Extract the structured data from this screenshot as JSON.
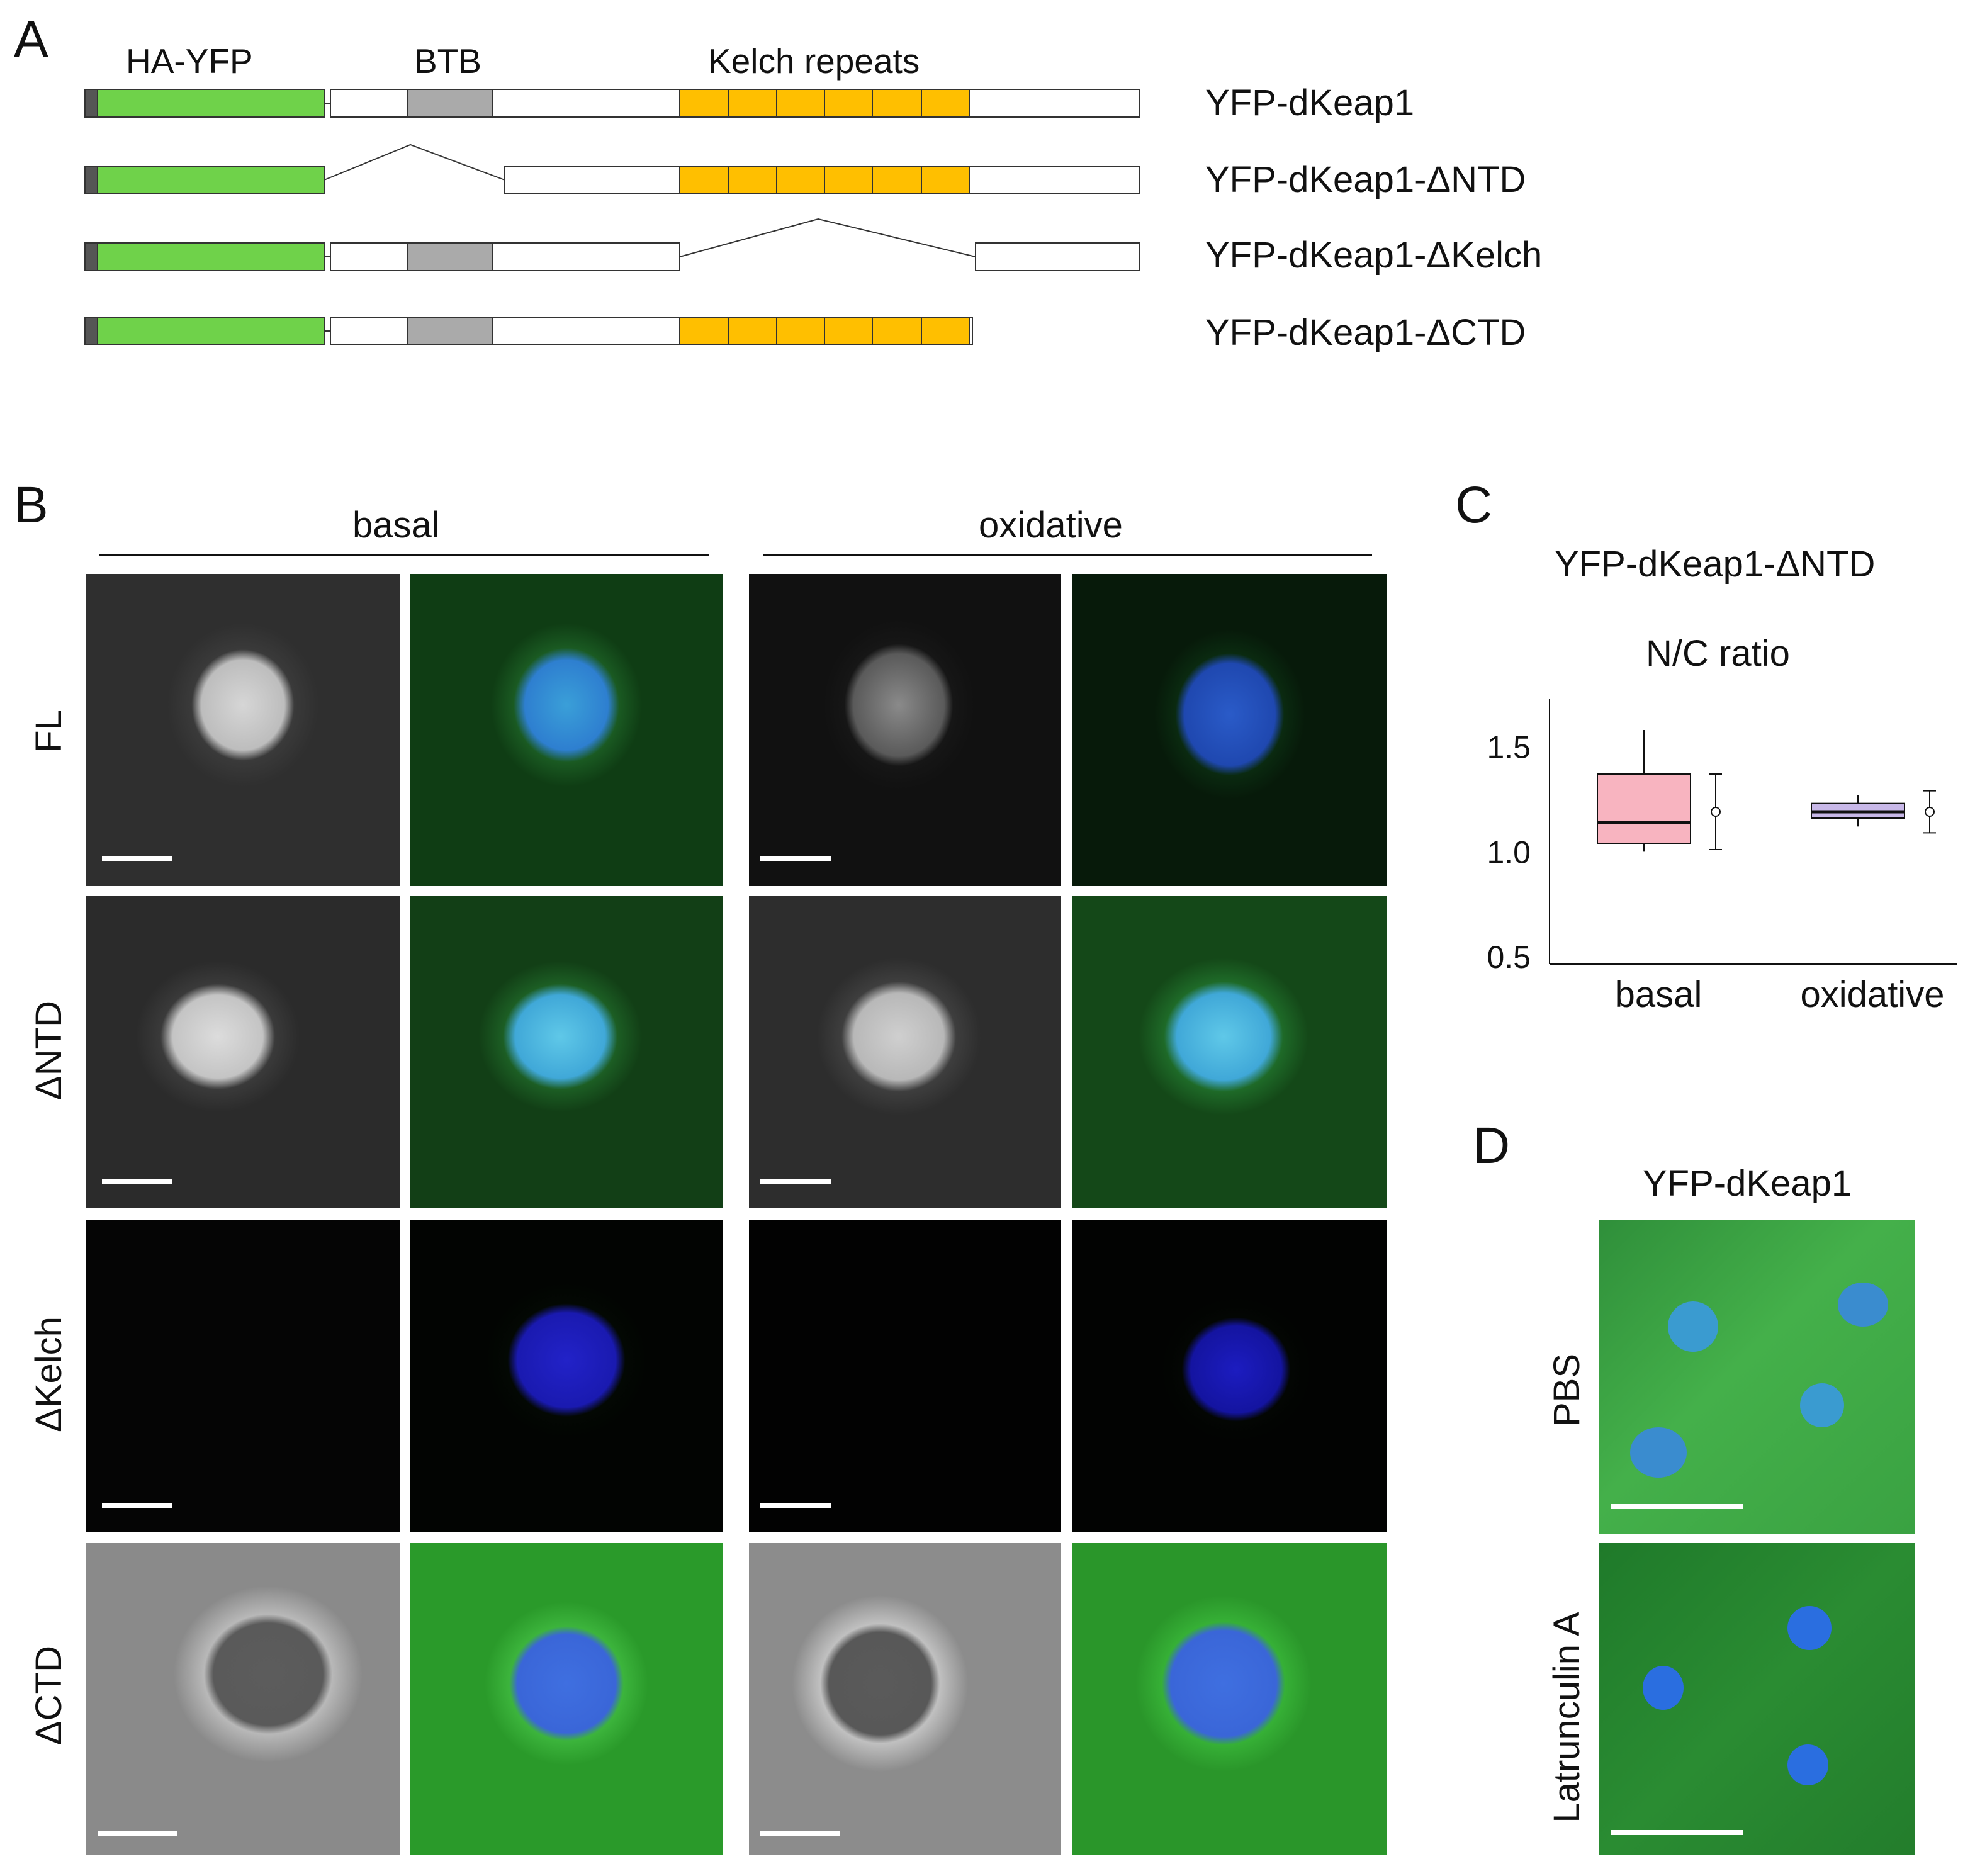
{
  "panels": {
    "a": "A",
    "b": "B",
    "c": "C",
    "d": "D"
  },
  "panel_a": {
    "domain_labels": {
      "hayfp": "HA-YFP",
      "btb": "BTB",
      "kelch": "Kelch repeats"
    },
    "constructs": [
      "YFP-dKeap1",
      "YFP-dKeap1-ΔNTD",
      "YFP-dKeap1-ΔKelch",
      "YFP-dKeap1-ΔCTD"
    ],
    "colors": {
      "yfp": "#6fd24a",
      "tag": "#555555",
      "btb": "#aaaaaa",
      "kelch": "#ffbf00",
      "body": "#ffffff"
    }
  },
  "panel_b": {
    "conditions": [
      "basal",
      "oxidative"
    ],
    "rows": [
      "FL",
      "ΔNTD",
      "ΔKelch",
      "ΔCTD"
    ]
  },
  "panel_c": {
    "title": "YFP-dKeap1-ΔNTD",
    "subtitle": "N/C ratio",
    "chart_data": {
      "type": "box",
      "categories": [
        "basal",
        "oxidative"
      ],
      "yticks": [
        "0.5",
        "1.0",
        "1.5"
      ],
      "ylim": [
        0.5,
        1.7
      ],
      "boxes": [
        {
          "category": "basal",
          "whisker_low": 1.0,
          "q1": 1.04,
          "median": 1.14,
          "q3": 1.37,
          "whisker_high": 1.58,
          "mean": 1.19,
          "mean_err_low": 1.01,
          "mean_err_high": 1.37,
          "color": "#f8b4c0"
        },
        {
          "category": "oxidative",
          "whisker_low": 1.12,
          "q1": 1.16,
          "median": 1.19,
          "q3": 1.23,
          "whisker_high": 1.27,
          "mean": 1.19,
          "mean_err_low": 1.09,
          "mean_err_high": 1.29,
          "color": "#c8b8e8"
        }
      ]
    }
  },
  "panel_d": {
    "title": "YFP-dKeap1",
    "rows": [
      "PBS",
      "Latrunculin A"
    ]
  }
}
